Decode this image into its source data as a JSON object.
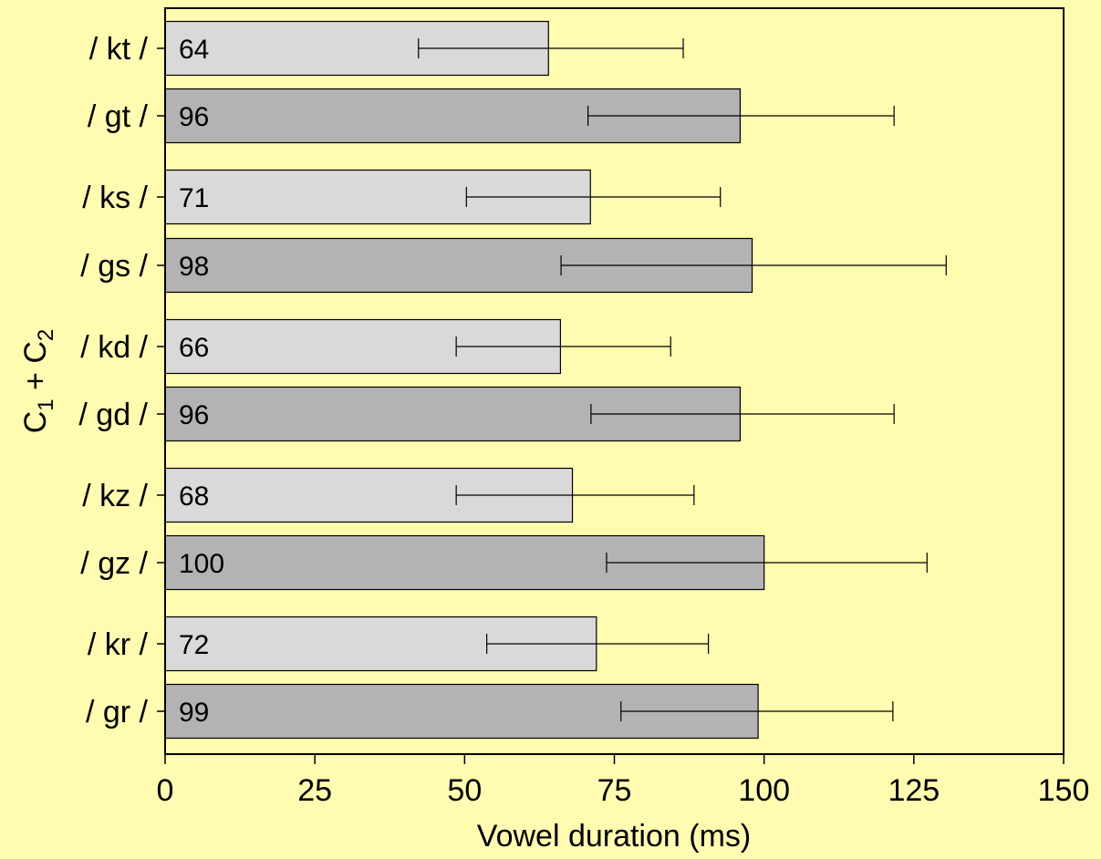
{
  "chart_data": {
    "type": "bar",
    "orientation": "horizontal",
    "xlabel": "Vowel duration (ms)",
    "ylabel": {
      "base": "C",
      "sub1": "1",
      "plus": " + ",
      "sub2": "2"
    },
    "xlim": [
      0,
      150
    ],
    "xticks": [
      0,
      25,
      50,
      75,
      100,
      125,
      150
    ],
    "grid": false,
    "legend": "none",
    "categories": [
      "/ kt /",
      "/ gt /",
      "/ ks /",
      "/ gs /",
      "/ kd /",
      "/ gd /",
      "/ kz /",
      "/ gz /",
      "/ kr /",
      "/ gr /"
    ],
    "values": [
      64,
      96,
      71,
      98,
      66,
      96,
      68,
      100,
      72,
      99
    ],
    "value_labels": [
      "64",
      "96",
      "71",
      "98",
      "66",
      "96",
      "68",
      "100",
      "72",
      "99"
    ],
    "error_low": [
      42.3,
      70.6,
      50.3,
      66.1,
      48.6,
      71.1,
      48.6,
      73.7,
      53.7,
      76.1
    ],
    "error_high": [
      86.5,
      121.7,
      92.7,
      130.4,
      84.4,
      121.7,
      88.3,
      127.2,
      90.7,
      121.5
    ],
    "bar_colors": [
      "#D9D9D9",
      "#B3B3B3",
      "#D9D9D9",
      "#B3B3B3",
      "#D9D9D9",
      "#B3B3B3",
      "#D9D9D9",
      "#B3B3B3",
      "#D9D9D9",
      "#B3B3B3"
    ]
  },
  "colors": {
    "background": "#FFFBB0",
    "light_bar": "#D9D9D9",
    "dark_bar": "#B3B3B3",
    "stroke": "#000000"
  }
}
